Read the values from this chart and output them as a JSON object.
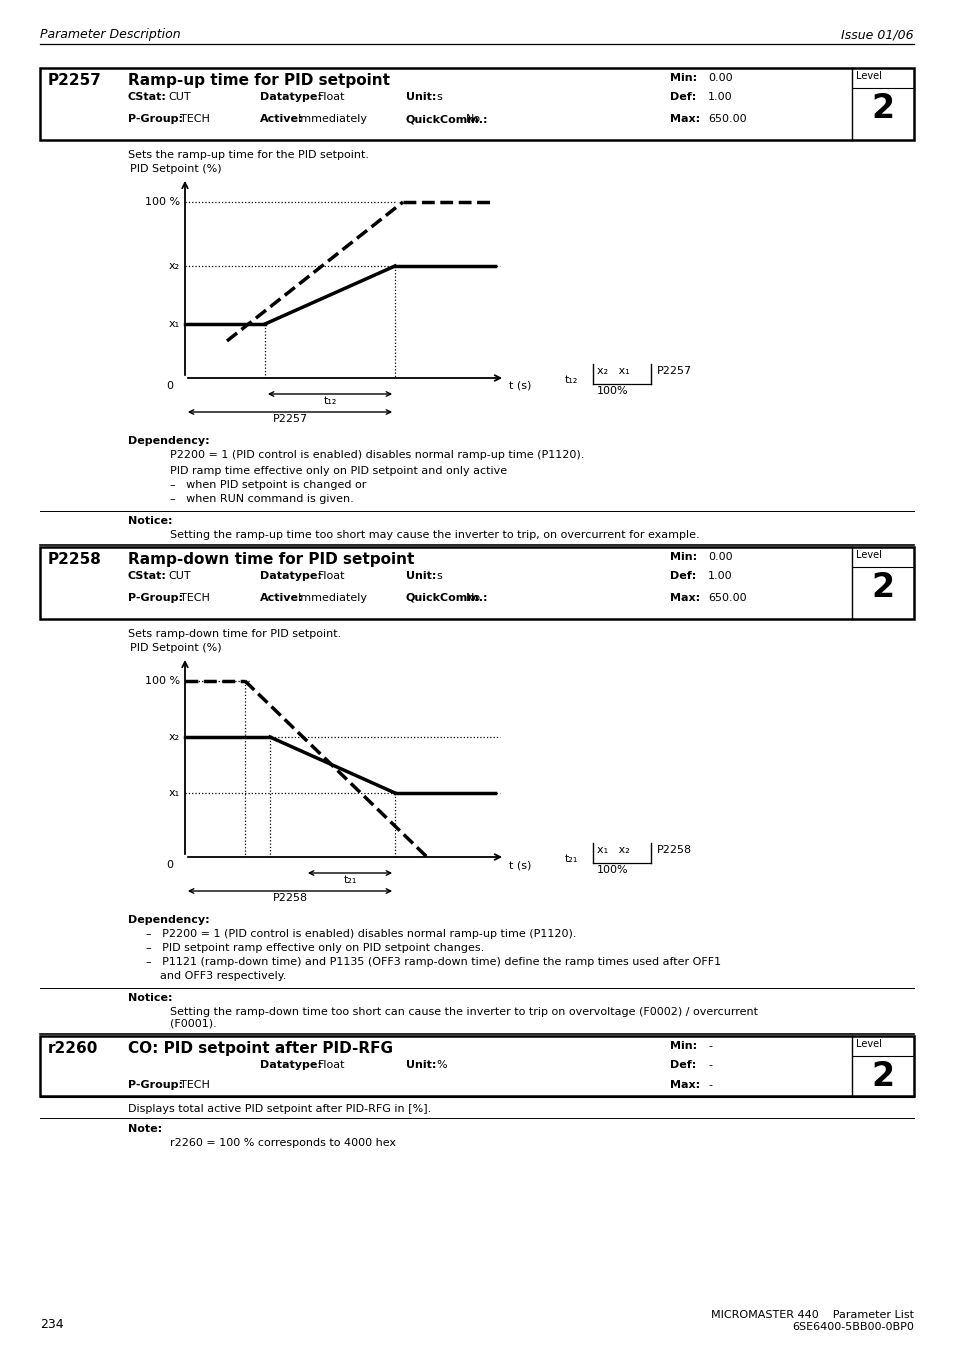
{
  "page_header_left": "Parameter Description",
  "page_header_right": "Issue 01/06",
  "page_number": "234",
  "footer_line1": "MICROMASTER 440    Parameter List",
  "footer_line2": "6SE6400-5BB00-0BP0",
  "p2257": {
    "param_id": "P2257",
    "title": "Ramp-up time for PID setpoint",
    "cstat_label": "CStat:",
    "cstat_val": "CUT",
    "datatype_label": "Datatype:",
    "datatype_val": "Float",
    "unit_label": "Unit:",
    "unit_val": "s",
    "min_label": "Min:",
    "min_val": "0.00",
    "def_label": "Def:",
    "def_val": "1.00",
    "max_label": "Max:",
    "max_val": "650.00",
    "level_label": "Level",
    "level_val": "2",
    "pgroup_label": "P-Group:",
    "pgroup_val": "TECH",
    "active_label": "Active:",
    "active_val": "Immediately",
    "qc_label": "QuickComm.:",
    "qc_val": "No",
    "description": "Sets the ramp-up time for the PID setpoint.",
    "graph_ylabel": "PID Setpoint (%)",
    "graph_xlabel": "t (s)",
    "dependency_title": "Dependency:",
    "dependency_line1": "P2200 = 1 (PID control is enabled) disables normal ramp-up time (P1120).",
    "dependency_line2": "PID ramp time effective only on PID setpoint and only active",
    "dependency_bullet1": "when PID setpoint is changed or",
    "dependency_bullet2": "when RUN command is given.",
    "notice_title": "Notice:",
    "notice_text": "Setting the ramp-up time too short may cause the inverter to trip, on overcurrent for example."
  },
  "p2258": {
    "param_id": "P2258",
    "title": "Ramp-down time for PID setpoint",
    "cstat_label": "CStat:",
    "cstat_val": "CUT",
    "datatype_label": "Datatype:",
    "datatype_val": "Float",
    "unit_label": "Unit:",
    "unit_val": "s",
    "min_label": "Min:",
    "min_val": "0.00",
    "def_label": "Def:",
    "def_val": "1.00",
    "max_label": "Max:",
    "max_val": "650.00",
    "level_label": "Level",
    "level_val": "2",
    "pgroup_label": "P-Group:",
    "pgroup_val": "TECH",
    "active_label": "Active:",
    "active_val": "Immediately",
    "qc_label": "QuickComm.:",
    "qc_val": "No",
    "description": "Sets ramp-down time for PID setpoint.",
    "graph_ylabel": "PID Setpoint (%)",
    "graph_xlabel": "t (s)",
    "dependency_title": "Dependency:",
    "dep2_line1": "P2200 = 1 (PID control is enabled) disables normal ramp-up time (P1120).",
    "dep2_line2": "PID setpoint ramp effective only on PID setpoint changes.",
    "dep2_line3": "P1121 (ramp-down time) and P1135 (OFF3 ramp-down time) define the ramp times used after OFF1",
    "dep2_line3b": "and OFF3 respectively.",
    "notice_title": "Notice:",
    "notice_line1": "Setting the ramp-down time too short can cause the inverter to trip on overvoltage (F0002) / overcurrent",
    "notice_line2": "(F0001)."
  },
  "r2260": {
    "param_id": "r2260",
    "title": "CO: PID setpoint after PID-RFG",
    "datatype_label": "Datatype:",
    "datatype_val": "Float",
    "unit_label": "Unit:",
    "unit_val": "%",
    "min_label": "Min:",
    "min_val": "-",
    "def_label": "Def:",
    "def_val": "-",
    "max_label": "Max:",
    "max_val": "-",
    "level_label": "Level",
    "level_val": "2",
    "pgroup_label": "P-Group:",
    "pgroup_val": "TECH",
    "description": "Displays total active PID setpoint after PID-RFG in [%].",
    "note_title": "Note:",
    "note_text": "r2260 = 100 % corresponds to 4000 hex"
  }
}
